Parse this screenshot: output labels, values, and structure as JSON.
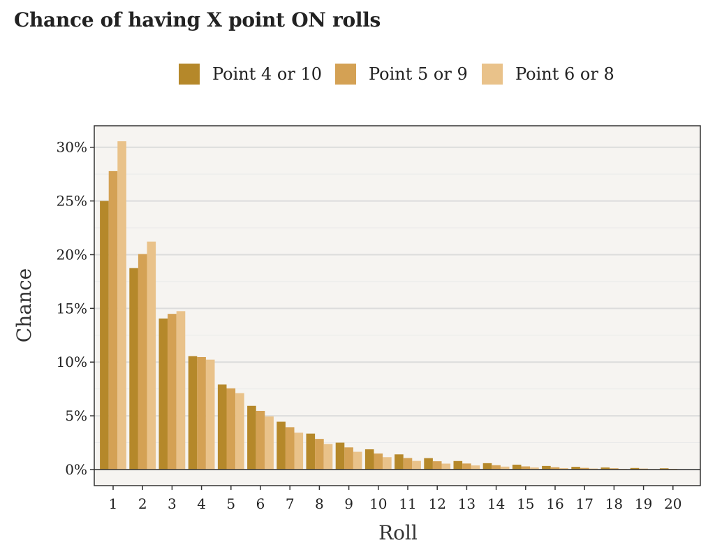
{
  "chart_data": {
    "type": "bar",
    "title": "Chance of having X point ON rolls",
    "xlabel": "Roll",
    "ylabel": "Chance",
    "categories": [
      "1",
      "2",
      "3",
      "4",
      "5",
      "6",
      "7",
      "8",
      "9",
      "10",
      "11",
      "12",
      "13",
      "14",
      "15",
      "16",
      "17",
      "18",
      "19",
      "20"
    ],
    "ylim": [
      -0.015,
      0.32
    ],
    "yticks": [
      0,
      0.05,
      0.1,
      0.15,
      0.2,
      0.25,
      0.3
    ],
    "ytick_labels": [
      "0%",
      "5%",
      "10%",
      "15%",
      "20%",
      "25%",
      "30%"
    ],
    "legend_position": "top",
    "grid": true,
    "series": [
      {
        "name": "Point 4 or 10",
        "color": "#B5882A",
        "values": [
          0.25,
          0.1875,
          0.1406,
          0.1055,
          0.0791,
          0.0593,
          0.0445,
          0.0334,
          0.025,
          0.0188,
          0.0141,
          0.0106,
          0.0079,
          0.0059,
          0.0045,
          0.0033,
          0.0025,
          0.0019,
          0.0014,
          0.0011
        ]
      },
      {
        "name": "Point 5 or 9",
        "color": "#D4A154",
        "values": [
          0.2778,
          0.2006,
          0.1449,
          0.1047,
          0.0756,
          0.0546,
          0.0394,
          0.0285,
          0.0206,
          0.0149,
          0.0107,
          0.0077,
          0.0056,
          0.004,
          0.0029,
          0.0021,
          0.0015,
          0.0011,
          0.0008,
          0.0006
        ]
      },
      {
        "name": "Point 6 or 8",
        "color": "#E9C28A",
        "values": [
          0.3056,
          0.2122,
          0.1474,
          0.1023,
          0.0711,
          0.0494,
          0.0343,
          0.0238,
          0.0165,
          0.0115,
          0.008,
          0.0055,
          0.0038,
          0.0027,
          0.0019,
          0.0013,
          0.0009,
          0.0006,
          0.0004,
          0.0003
        ]
      }
    ]
  }
}
